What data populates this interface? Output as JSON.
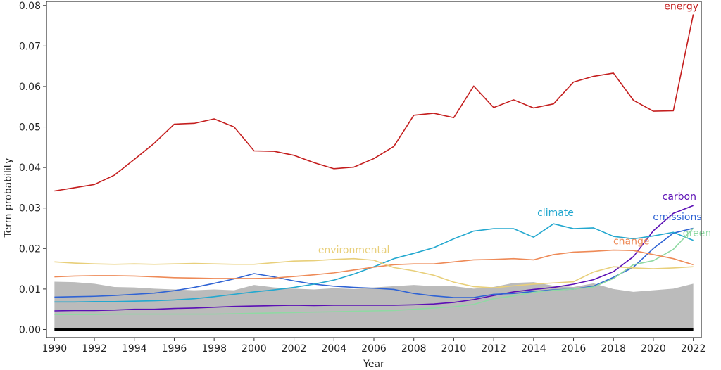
{
  "chart_data": {
    "type": "line",
    "xlabel": "Year",
    "ylabel": "Term probability",
    "xlim": [
      1989.6,
      2022.4
    ],
    "ylim": [
      -0.002,
      0.081
    ],
    "x_ticks": [
      "1990",
      "1992",
      "1994",
      "1996",
      "1998",
      "2000",
      "2002",
      "2004",
      "2006",
      "2008",
      "2010",
      "2012",
      "2014",
      "2016",
      "2018",
      "2020",
      "2022"
    ],
    "y_ticks": [
      "0.00",
      "0.01",
      "0.02",
      "0.03",
      "0.04",
      "0.05",
      "0.06",
      "0.07",
      "0.08"
    ],
    "x": [
      1990,
      1991,
      1992,
      1993,
      1994,
      1995,
      1996,
      1997,
      1998,
      1999,
      2000,
      2001,
      2002,
      2003,
      2004,
      2005,
      2006,
      2007,
      2008,
      2009,
      2010,
      2011,
      2012,
      2013,
      2014,
      2015,
      2016,
      2017,
      2018,
      2019,
      2020,
      2021,
      2022
    ],
    "baseline": {
      "color": "#bbbbbb",
      "values": [
        0.0118,
        0.0117,
        0.0113,
        0.0105,
        0.0104,
        0.0101,
        0.0099,
        0.0097,
        0.0099,
        0.0097,
        0.011,
        0.0104,
        0.0101,
        0.0099,
        0.0102,
        0.01,
        0.0104,
        0.0107,
        0.011,
        0.0107,
        0.0107,
        0.0101,
        0.0105,
        0.0115,
        0.0117,
        0.0108,
        0.0105,
        0.0114,
        0.01,
        0.0093,
        0.0097,
        0.0101,
        0.0113
      ]
    },
    "series": [
      {
        "name": "energy",
        "color": "#c41e1e",
        "values": [
          0.0342,
          0.035,
          0.0358,
          0.0381,
          0.042,
          0.046,
          0.0507,
          0.0509,
          0.052,
          0.05,
          0.0441,
          0.044,
          0.043,
          0.0412,
          0.0397,
          0.0401,
          0.0422,
          0.0452,
          0.0529,
          0.0534,
          0.0523,
          0.0601,
          0.0548,
          0.0567,
          0.0547,
          0.0557,
          0.0611,
          0.0625,
          0.0633,
          0.0566,
          0.0539,
          0.054,
          0.0778
        ]
      },
      {
        "name": "carbon",
        "color": "#5b0fb5",
        "values": [
          0.0046,
          0.0047,
          0.0047,
          0.0048,
          0.005,
          0.005,
          0.0052,
          0.0053,
          0.0055,
          0.0057,
          0.0058,
          0.0059,
          0.006,
          0.0059,
          0.006,
          0.006,
          0.006,
          0.006,
          0.0061,
          0.0063,
          0.0067,
          0.0074,
          0.0084,
          0.0093,
          0.0099,
          0.0104,
          0.0112,
          0.0123,
          0.0143,
          0.018,
          0.0244,
          0.0287,
          0.0306
        ]
      },
      {
        "name": "emissions",
        "color": "#2f63d4",
        "values": [
          0.008,
          0.0081,
          0.0082,
          0.0084,
          0.0087,
          0.009,
          0.0096,
          0.0104,
          0.0114,
          0.0125,
          0.0138,
          0.013,
          0.012,
          0.0112,
          0.0107,
          0.0104,
          0.0102,
          0.0099,
          0.0089,
          0.0083,
          0.0079,
          0.0079,
          0.0087,
          0.0089,
          0.0094,
          0.0098,
          0.01,
          0.0107,
          0.0129,
          0.0154,
          0.02,
          0.0238,
          0.025
        ]
      },
      {
        "name": "climate",
        "color": "#23a8cf",
        "values": [
          0.0068,
          0.0068,
          0.0069,
          0.0069,
          0.007,
          0.0071,
          0.0073,
          0.0076,
          0.0081,
          0.0087,
          0.0093,
          0.0098,
          0.0104,
          0.0112,
          0.0122,
          0.0137,
          0.0155,
          0.0175,
          0.0188,
          0.0202,
          0.0224,
          0.0243,
          0.0249,
          0.0249,
          0.0228,
          0.0261,
          0.0249,
          0.0251,
          0.023,
          0.0224,
          0.0231,
          0.024,
          0.022
        ]
      },
      {
        "name": "green",
        "color": "#8fd9a3",
        "values": [
          0.0037,
          0.0037,
          0.0037,
          0.0038,
          0.0038,
          0.0038,
          0.0038,
          0.0038,
          0.0038,
          0.0039,
          0.004,
          0.0041,
          0.0042,
          0.0043,
          0.0044,
          0.0045,
          0.0046,
          0.0047,
          0.005,
          0.0053,
          0.0056,
          0.0062,
          0.0076,
          0.0083,
          0.0092,
          0.0097,
          0.01,
          0.0105,
          0.0126,
          0.016,
          0.017,
          0.0198,
          0.025
        ]
      },
      {
        "name": "change",
        "color": "#ee8a57",
        "values": [
          0.013,
          0.0132,
          0.0133,
          0.0133,
          0.0132,
          0.013,
          0.0128,
          0.0127,
          0.0126,
          0.0126,
          0.0126,
          0.0127,
          0.0131,
          0.0135,
          0.014,
          0.0147,
          0.0154,
          0.016,
          0.0162,
          0.0162,
          0.0167,
          0.0172,
          0.0173,
          0.0175,
          0.0172,
          0.0185,
          0.0191,
          0.0193,
          0.0196,
          0.0195,
          0.0185,
          0.0175,
          0.016
        ]
      },
      {
        "name": "environmental",
        "color": "#e8cf7a",
        "values": [
          0.0167,
          0.0164,
          0.0162,
          0.0161,
          0.0162,
          0.0161,
          0.0162,
          0.0163,
          0.0162,
          0.0161,
          0.0161,
          0.0165,
          0.0169,
          0.017,
          0.0173,
          0.0175,
          0.0171,
          0.0153,
          0.0145,
          0.0134,
          0.0117,
          0.0106,
          0.0103,
          0.0108,
          0.0112,
          0.0115,
          0.0118,
          0.0142,
          0.0155,
          0.0152,
          0.015,
          0.0152,
          0.0155
        ]
      }
    ],
    "labels": [
      {
        "text": "energy",
        "x": 2021.4,
        "y": 0.079,
        "color": "#c41e1e"
      },
      {
        "text": "carbon",
        "x": 2021.3,
        "y": 0.032,
        "color": "#5b0fb5"
      },
      {
        "text": "emissions",
        "x": 2021.2,
        "y": 0.027,
        "color": "#2f63d4"
      },
      {
        "text": "climate",
        "x": 2015.1,
        "y": 0.028,
        "color": "#23a8cf"
      },
      {
        "text": "green",
        "x": 2022.9,
        "y": 0.023,
        "color": "#8fd9a3"
      },
      {
        "text": "change",
        "x": 2018.9,
        "y": 0.021,
        "color": "#ee8a57"
      },
      {
        "text": "environmental",
        "x": 2005.0,
        "y": 0.0188,
        "color": "#e8cf7a"
      }
    ],
    "zero_line_color": "#000000",
    "grid": false
  }
}
